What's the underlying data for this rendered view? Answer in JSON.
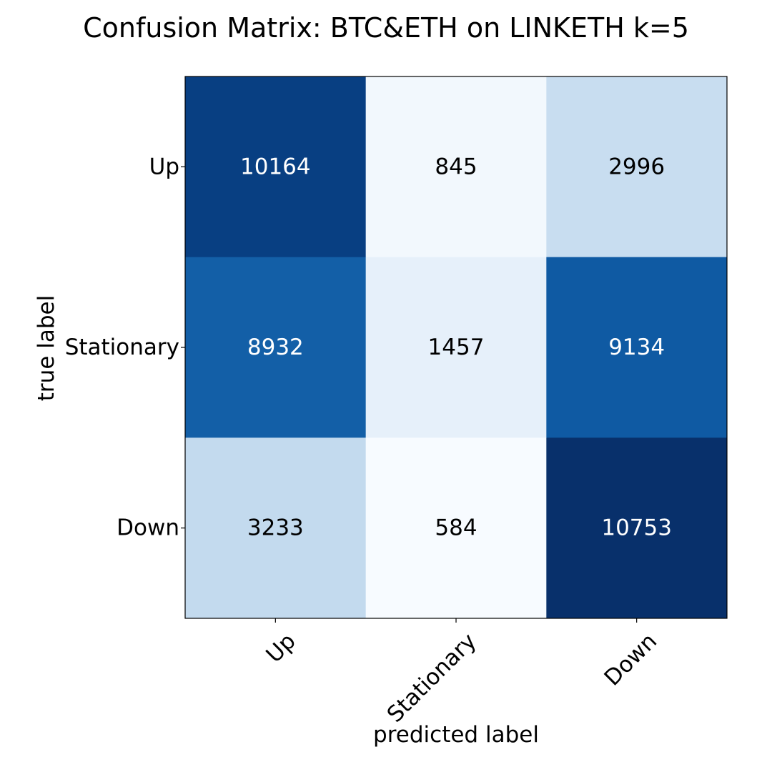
{
  "chart_data": {
    "type": "heatmap",
    "title": "Confusion Matrix: BTC&ETH on LINKETH k=5",
    "xlabel": "predicted label",
    "ylabel": "true label",
    "x_categories": [
      "Up",
      "Stationary",
      "Down"
    ],
    "y_categories": [
      "Up",
      "Stationary",
      "Down"
    ],
    "values": [
      [
        10164,
        845,
        2996
      ],
      [
        8932,
        1457,
        9134
      ],
      [
        3233,
        584,
        10753
      ]
    ],
    "colormap": "Blues",
    "colors": {
      "low": "#f7fbff",
      "high": "#08306b",
      "text_dark": "#000000",
      "text_light": "#ffffff"
    },
    "grid": false,
    "legend": "none"
  }
}
